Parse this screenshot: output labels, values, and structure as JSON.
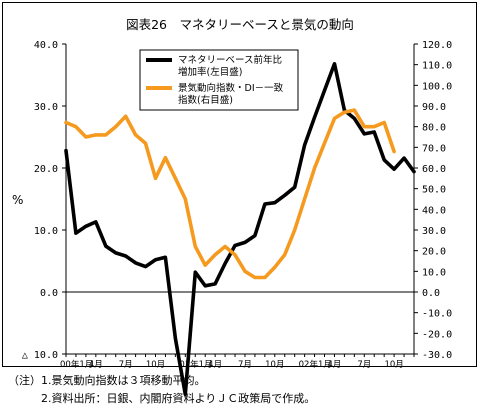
{
  "figure": {
    "title": "図表26　マネタリーベースと景気の動向"
  },
  "chart_data": {
    "type": "line",
    "x_tick_labels": [
      "00年1月",
      "4月",
      "7月",
      "10月",
      "01年1月",
      "4月",
      "7月",
      "10月",
      "02年1月",
      "4月",
      "7月",
      "10月"
    ],
    "left_axis": {
      "label": "%",
      "ylim": [
        -10,
        40
      ],
      "ticks": [
        {
          "value": 40,
          "label": "40.0"
        },
        {
          "value": 30,
          "label": "30.0"
        },
        {
          "value": 20,
          "label": "20.0"
        },
        {
          "value": 10,
          "label": "10.0"
        },
        {
          "value": 0,
          "label": "0.0"
        },
        {
          "value": -10,
          "label": "△ 10.0"
        }
      ]
    },
    "right_axis": {
      "ylim": [
        -30,
        120
      ],
      "ticks": [
        {
          "value": 120,
          "label": "120.0"
        },
        {
          "value": 110,
          "label": "110.0"
        },
        {
          "value": 100,
          "label": "100.0"
        },
        {
          "value": 90,
          "label": "90.0"
        },
        {
          "value": 80,
          "label": "80.0"
        },
        {
          "value": 70,
          "label": "70.0"
        },
        {
          "value": 60,
          "label": "60.0"
        },
        {
          "value": 50,
          "label": "50.0"
        },
        {
          "value": 40,
          "label": "40.0"
        },
        {
          "value": 30,
          "label": "30.0"
        },
        {
          "value": 20,
          "label": "20.0"
        },
        {
          "value": 10,
          "label": "10.0"
        },
        {
          "value": 0,
          "label": "0.0"
        },
        {
          "value": -10,
          "label": "-10.0"
        },
        {
          "value": -20,
          "label": "-20.0"
        },
        {
          "value": -30,
          "label": "-30.0"
        }
      ]
    },
    "legend_position": "top-center",
    "series": [
      {
        "name_lines": [
          "マネタリーベース前年比",
          "増加率(左目盛)"
        ],
        "axis": "left",
        "color": "#000000",
        "values": [
          22.8,
          9.5,
          10.6,
          11.3,
          7.4,
          6.3,
          5.8,
          4.7,
          4.1,
          5.2,
          5.6,
          -7.5,
          -16.5,
          3.2,
          1.0,
          1.3,
          4.6,
          7.5,
          8.0,
          9.1,
          14.2,
          14.4,
          15.6,
          16.9,
          23.7,
          28.2,
          32.5,
          36.8,
          29.3,
          28.0,
          25.5,
          25.8,
          21.3,
          19.8,
          21.6,
          19.4
        ]
      },
      {
        "name_lines": [
          "景気動向指数・DI－一致",
          "指数(右目盛)"
        ],
        "axis": "right",
        "color": "#f59a1e",
        "values": [
          82,
          80,
          75,
          76,
          76,
          80,
          85,
          76,
          72,
          55,
          65,
          55,
          45,
          22,
          13,
          18,
          22,
          18,
          10,
          7,
          7,
          12,
          18,
          30,
          45,
          60,
          72,
          84,
          87,
          88,
          80,
          80,
          82,
          68
        ]
      }
    ]
  },
  "notes": [
    "（注）1.景気動向指数は３項移動平均。",
    "　　　2.資料出所：日銀、内閣府資料よりＪＣ政策局で作成。"
  ]
}
